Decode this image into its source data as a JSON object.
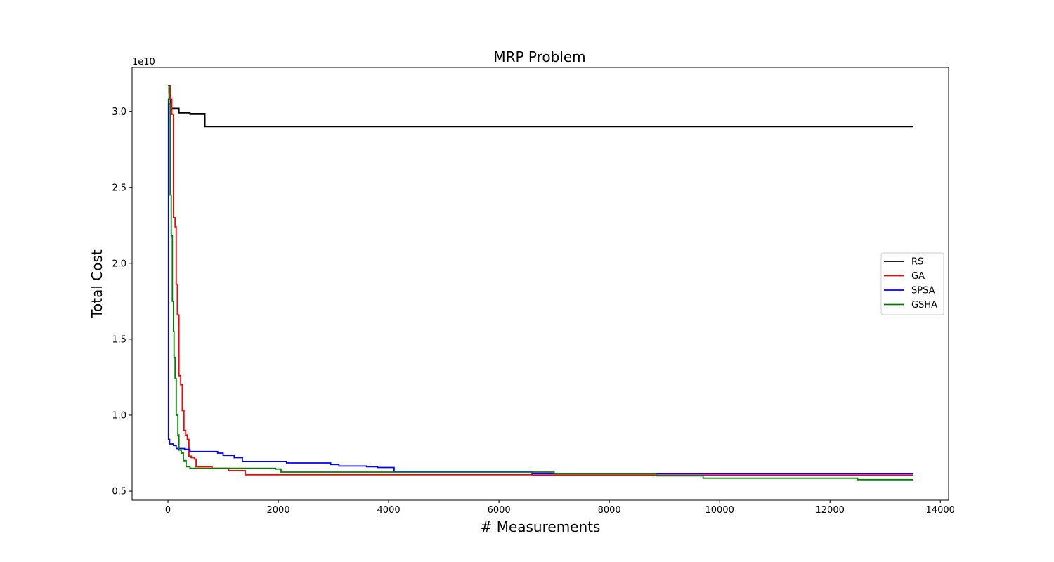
{
  "chart_data": {
    "type": "line",
    "title": "MRP Problem",
    "xlabel": "# Measurements",
    "ylabel": "Total Cost",
    "y_offset_label": "1e10",
    "xlim": [
      -650,
      14150
    ],
    "ylim": [
      0.44,
      3.29
    ],
    "xticks": [
      0,
      2000,
      4000,
      6000,
      8000,
      10000,
      12000,
      14000
    ],
    "xtick_labels": [
      "0",
      "2000",
      "4000",
      "6000",
      "8000",
      "10000",
      "12000",
      "14000"
    ],
    "yticks": [
      0.5,
      1.0,
      1.5,
      2.0,
      2.5,
      3.0
    ],
    "ytick_labels": [
      "0.5",
      "1.0",
      "1.5",
      "2.0",
      "2.5",
      "3.0"
    ],
    "grid": false,
    "legend_position": "center-right",
    "series": [
      {
        "name": "RS",
        "color": "#000000",
        "step": true,
        "points": [
          [
            0,
            3.17
          ],
          [
            20,
            3.12
          ],
          [
            50,
            3.02
          ],
          [
            200,
            2.99
          ],
          [
            400,
            2.985
          ],
          [
            650,
            2.985
          ],
          [
            670,
            2.9
          ],
          [
            13500,
            2.9
          ]
        ]
      },
      {
        "name": "GA",
        "color": "#ff0000",
        "step": true,
        "points": [
          [
            0,
            3.17
          ],
          [
            40,
            3.08
          ],
          [
            70,
            2.98
          ],
          [
            100,
            2.3
          ],
          [
            130,
            2.24
          ],
          [
            150,
            1.86
          ],
          [
            170,
            1.66
          ],
          [
            200,
            1.26
          ],
          [
            230,
            1.2
          ],
          [
            260,
            1.03
          ],
          [
            290,
            0.9
          ],
          [
            320,
            0.87
          ],
          [
            350,
            0.84
          ],
          [
            380,
            0.73
          ],
          [
            420,
            0.72
          ],
          [
            480,
            0.71
          ],
          [
            510,
            0.66
          ],
          [
            800,
            0.65
          ],
          [
            1100,
            0.635
          ],
          [
            1400,
            0.607
          ],
          [
            6600,
            0.605
          ],
          [
            13500,
            0.605
          ]
        ]
      },
      {
        "name": "SPSA",
        "color": "#0000ff",
        "step": true,
        "points": [
          [
            0,
            3.08
          ],
          [
            10,
            0.84
          ],
          [
            30,
            0.81
          ],
          [
            100,
            0.8
          ],
          [
            150,
            0.78
          ],
          [
            300,
            0.775
          ],
          [
            400,
            0.76
          ],
          [
            900,
            0.75
          ],
          [
            1000,
            0.735
          ],
          [
            1200,
            0.72
          ],
          [
            1350,
            0.695
          ],
          [
            2150,
            0.685
          ],
          [
            2950,
            0.675
          ],
          [
            3100,
            0.665
          ],
          [
            3600,
            0.66
          ],
          [
            3800,
            0.655
          ],
          [
            4100,
            0.63
          ],
          [
            6600,
            0.615
          ],
          [
            13500,
            0.62
          ]
        ]
      },
      {
        "name": "GSHA",
        "color": "#008000",
        "step": true,
        "points": [
          [
            0,
            3.17
          ],
          [
            20,
            3.05
          ],
          [
            40,
            2.45
          ],
          [
            60,
            2.18
          ],
          [
            80,
            1.75
          ],
          [
            100,
            1.55
          ],
          [
            110,
            1.38
          ],
          [
            130,
            1.24
          ],
          [
            150,
            1.0
          ],
          [
            180,
            0.87
          ],
          [
            200,
            0.77
          ],
          [
            240,
            0.75
          ],
          [
            280,
            0.7
          ],
          [
            330,
            0.66
          ],
          [
            400,
            0.65
          ],
          [
            600,
            0.65
          ],
          [
            1950,
            0.645
          ],
          [
            2050,
            0.625
          ],
          [
            5600,
            0.625
          ],
          [
            7000,
            0.615
          ],
          [
            8850,
            0.6
          ],
          [
            9700,
            0.585
          ],
          [
            12500,
            0.575
          ],
          [
            13500,
            0.575
          ]
        ]
      }
    ]
  }
}
